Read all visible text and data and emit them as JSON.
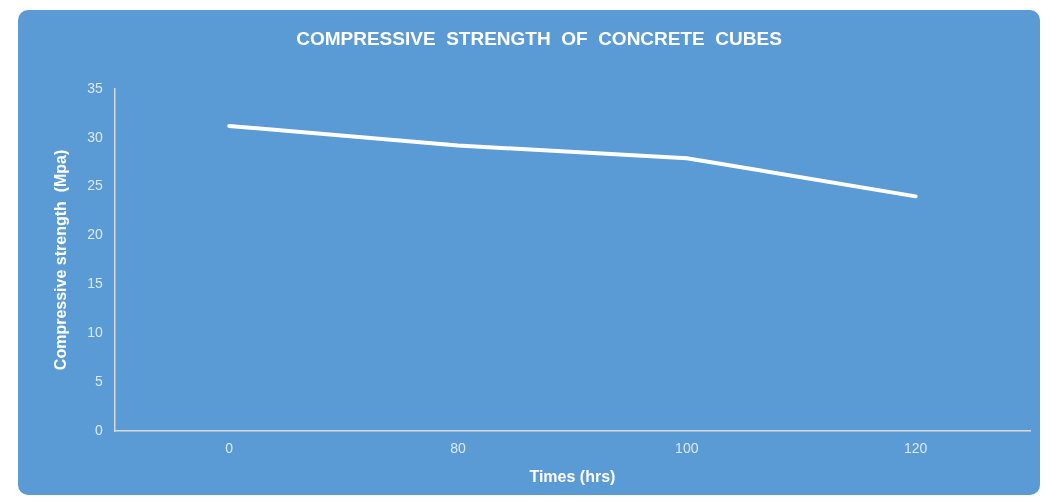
{
  "chart_data": {
    "type": "line",
    "title": "COMPRESSIVE  STRENGTH  OF  CONCRETE  CUBES",
    "xlabel": "Times (hrs)",
    "ylabel": "Compressive strength  (Mpa)",
    "categories": [
      "0",
      "80",
      "100",
      "120"
    ],
    "series": [
      {
        "color": "#ffffff",
        "values": [
          31.2,
          29.2,
          27.9,
          24.0
        ]
      }
    ],
    "ylim": [
      0,
      35
    ],
    "yticks": [
      0,
      5,
      10,
      15,
      20,
      25,
      30,
      35
    ],
    "grid": false,
    "legend": false,
    "marker": "none",
    "line_style": "solid"
  }
}
